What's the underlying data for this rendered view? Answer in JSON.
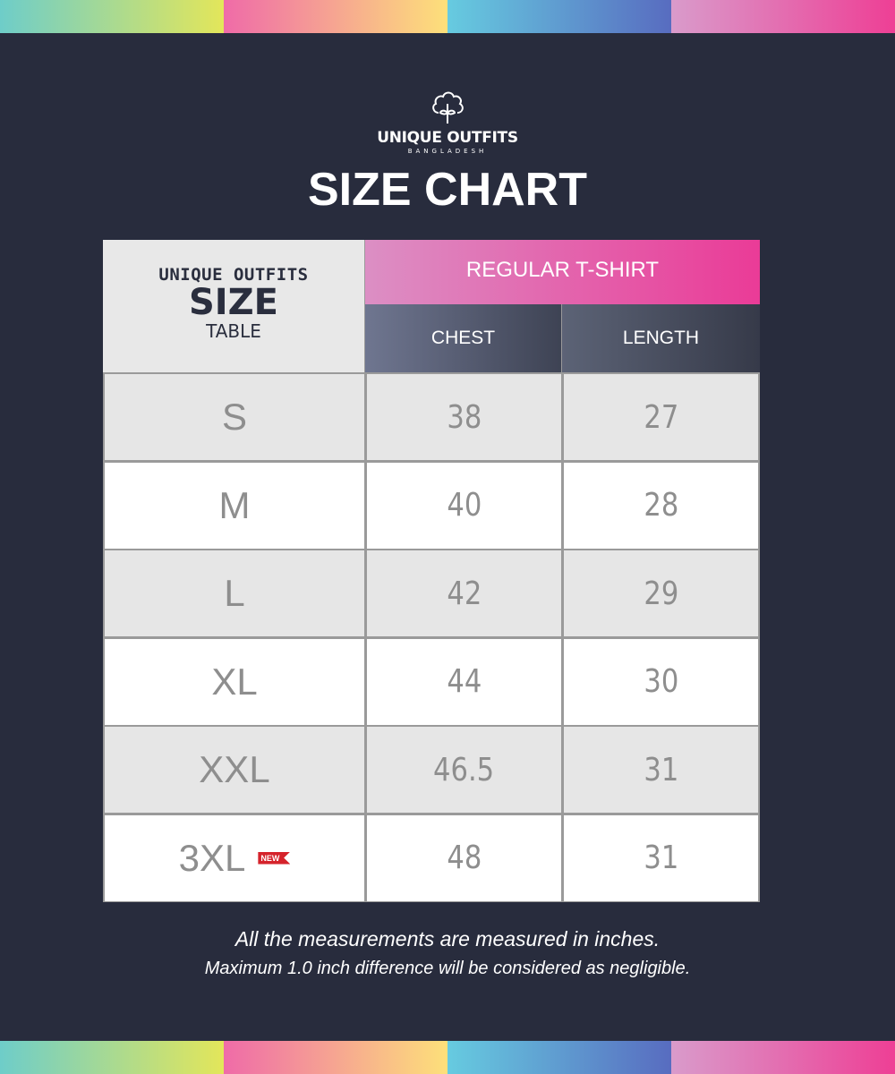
{
  "brand": {
    "name": "UNIQUE OUTFITS",
    "subtitle": "BANGLADESH"
  },
  "title": "SIZE CHART",
  "table": {
    "corner": {
      "line1": "UNIQUE OUTFITS",
      "line2": "SIZE",
      "line3": "TABLE"
    },
    "product": "REGULAR T-SHIRT",
    "columns": [
      "CHEST",
      "LENGTH"
    ],
    "rows": [
      {
        "size": "S",
        "chest": "38",
        "length": "27"
      },
      {
        "size": "M",
        "chest": "40",
        "length": "28"
      },
      {
        "size": "L",
        "chest": "42",
        "length": "29"
      },
      {
        "size": "XL",
        "chest": "44",
        "length": "30"
      },
      {
        "size": "XXL",
        "chest": "46.5",
        "length": "31"
      },
      {
        "size": "3XL",
        "chest": "48",
        "length": "31",
        "badge": "NEW"
      }
    ]
  },
  "notes": [
    "All the measurements are measured in inches.",
    "Maximum 1.0 inch difference will be considered as negligible."
  ],
  "colors": {
    "background": "#282c3d",
    "header_pink": "#ea3b97",
    "badge": "#d5232b"
  }
}
